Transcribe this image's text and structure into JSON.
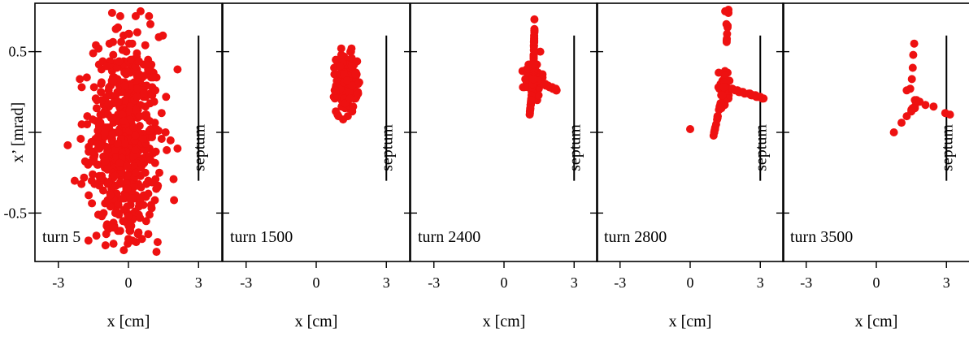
{
  "colors": {
    "points": "#ee1111",
    "frame": "#000000",
    "septum": "#000000"
  },
  "chart_data": {
    "type": "scatter",
    "xlabel": "x [cm]",
    "ylabel": "x’ [mrad]",
    "xlim": [
      -4,
      4
    ],
    "ylim": [
      -0.8,
      0.8
    ],
    "xticks": [
      -3,
      0,
      3
    ],
    "xtick_labels": [
      "-3",
      "0",
      "3"
    ],
    "yticks": [
      0.5,
      0,
      -0.5
    ],
    "ytick_labels": [
      "0.5",
      "",
      "-0.5"
    ],
    "septum": {
      "label": "septum",
      "x": 3.0,
      "y_start": 0.6,
      "y_end": -0.3
    },
    "panels": [
      {
        "label": "turn 5",
        "points": []
      },
      {
        "label": "turn 1500",
        "points": []
      },
      {
        "label": "turn 2400",
        "points": []
      },
      {
        "label": "turn 2800",
        "points": []
      },
      {
        "label": "turn 3500",
        "points": []
      }
    ]
  }
}
